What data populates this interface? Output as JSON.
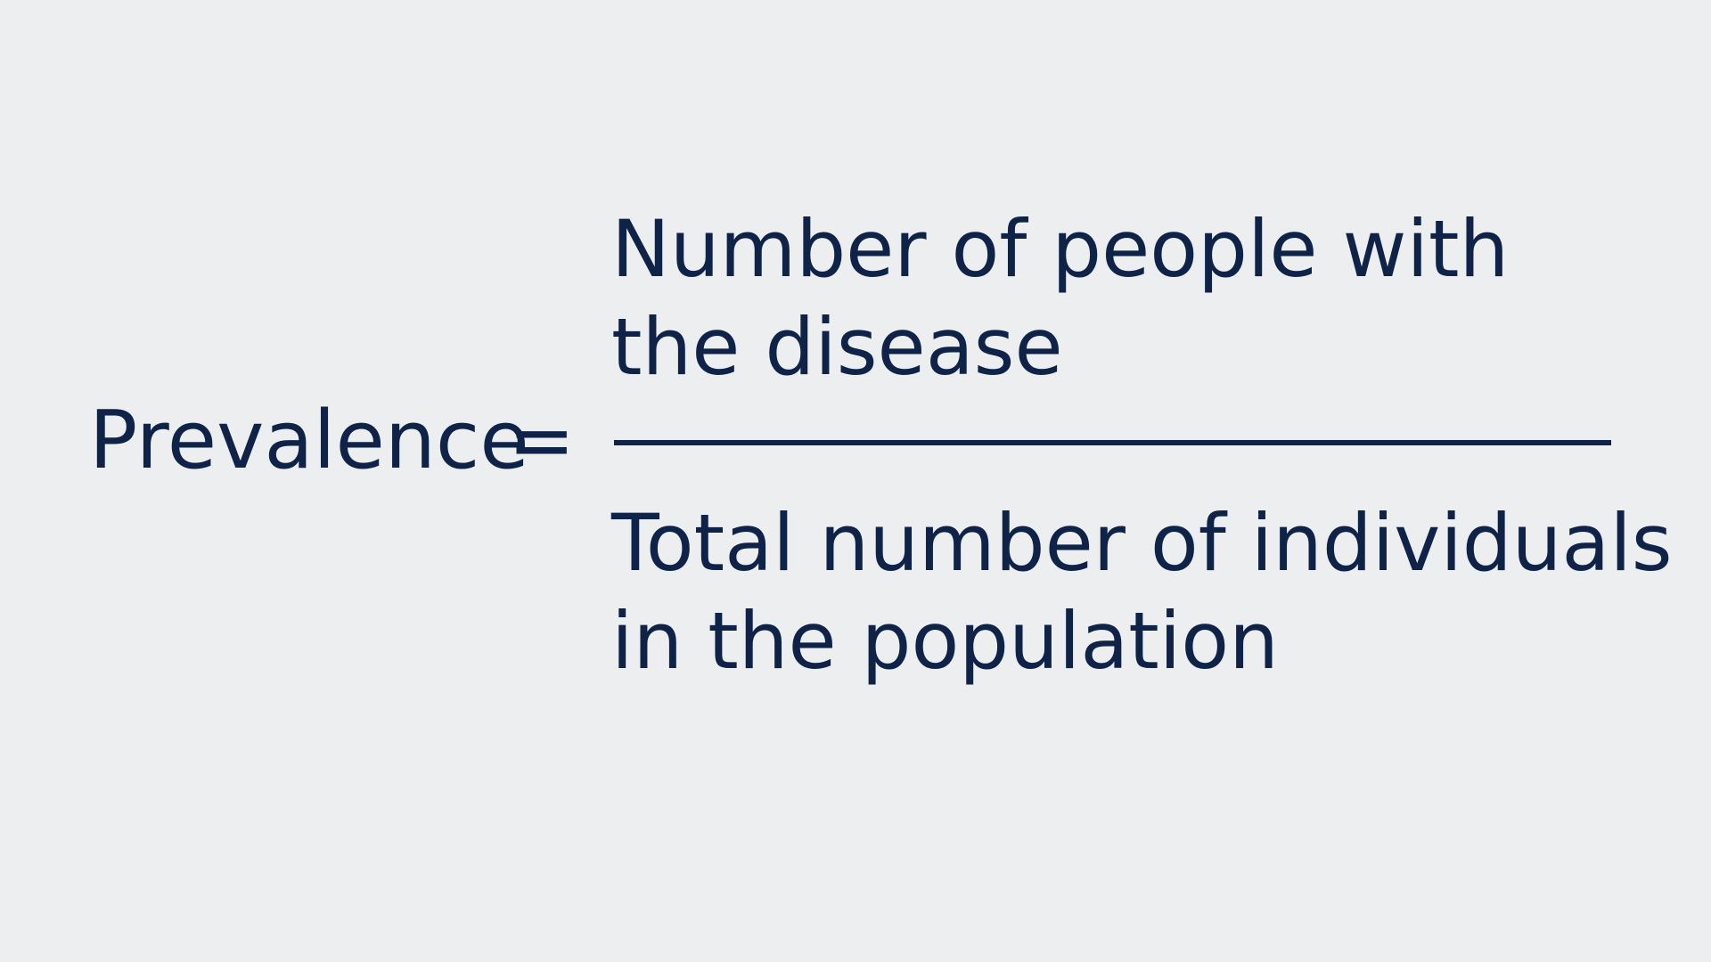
{
  "formula": {
    "lhs_label": "Prevalence",
    "equals_sign": "=",
    "numerator": {
      "line1": "Number of people with",
      "line2": "the disease"
    },
    "denominator": {
      "line1": "Total number of individuals",
      "line2": "in the population"
    }
  },
  "colors": {
    "background": "#ECEEF0",
    "text": "#0F2349"
  }
}
